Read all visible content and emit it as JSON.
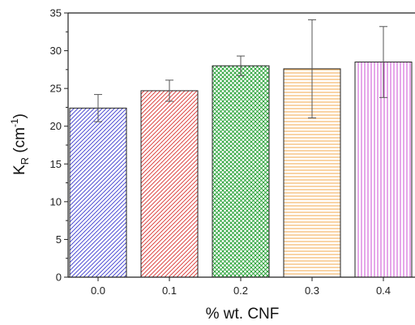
{
  "chart_data": {
    "type": "bar",
    "categories": [
      "0.0",
      "0.1",
      "0.2",
      "0.3",
      "0.4"
    ],
    "values": [
      22.4,
      24.7,
      28.0,
      27.6,
      28.5
    ],
    "errors": [
      1.8,
      1.4,
      1.3,
      6.5,
      4.7
    ],
    "xlabel": "% wt. CNF",
    "ylabel": "K_R (cm^-1)",
    "ylabel_parts": {
      "main": "K",
      "sub": "R",
      "unit_open": " (cm",
      "sup": "-1",
      "unit_close": ")"
    },
    "ylim": [
      0,
      35
    ],
    "yticks": [
      0,
      5,
      10,
      15,
      20,
      25,
      30,
      35
    ],
    "grid": false,
    "bar_styles": [
      {
        "color": "#3b3bcf",
        "pattern": "diagonal-right"
      },
      {
        "color": "#d9322f",
        "pattern": "diagonal-right"
      },
      {
        "color": "#1e9e2e",
        "pattern": "crosshatch"
      },
      {
        "color": "#f2a03a",
        "pattern": "horizontal"
      },
      {
        "color": "#c93ccf",
        "pattern": "vertical"
      }
    ]
  }
}
